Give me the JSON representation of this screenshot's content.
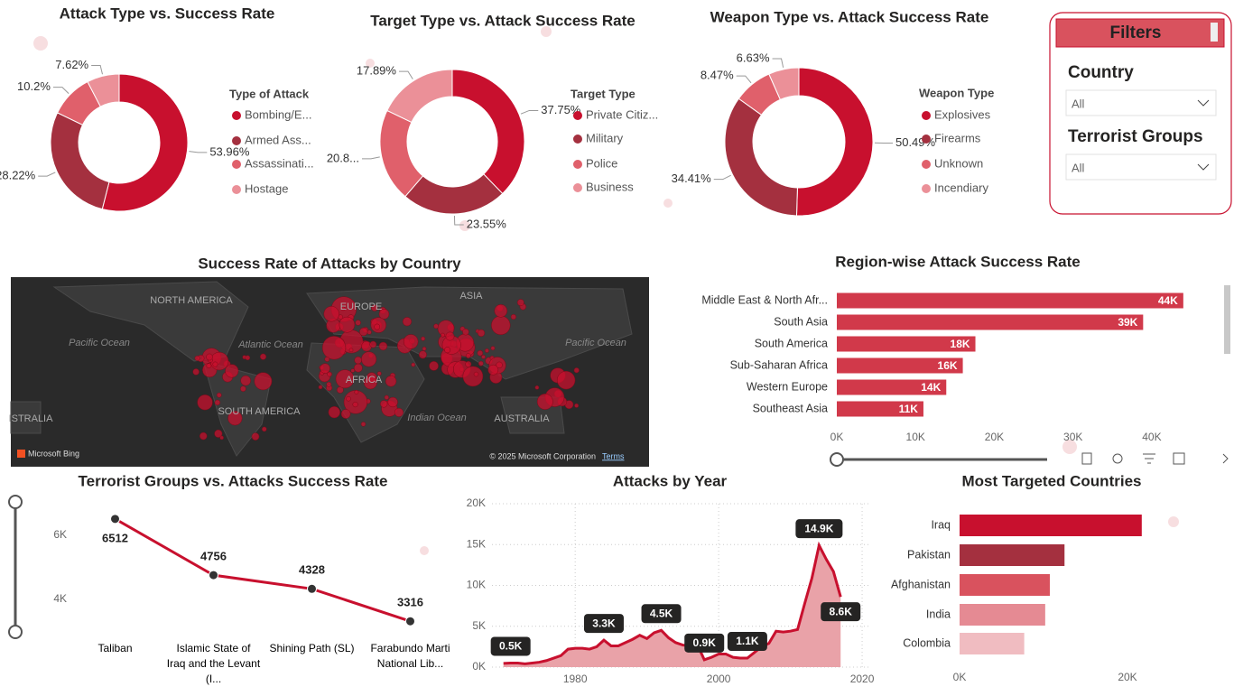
{
  "chart_data": [
    {
      "type": "donut",
      "title": "Attack Type vs. Success Rate",
      "legend_title": "Type of Attack",
      "categories": [
        "Bombing/E...",
        "Armed Ass...",
        "Assassinati...",
        "Hostage"
      ],
      "values": [
        53.96,
        28.22,
        10.2,
        7.62
      ],
      "value_labels": [
        "53.96%",
        "28.22%",
        "10.2%",
        "7.62%"
      ],
      "colors": [
        "#c8102e",
        "#a4303f",
        "#e0606b",
        "#eb9098"
      ]
    },
    {
      "type": "donut",
      "title": "Target Type vs. Attack Success Rate",
      "legend_title": "Target Type",
      "categories": [
        "Private Citiz...",
        "Military",
        "Police",
        "Business"
      ],
      "values": [
        37.75,
        23.55,
        20.81,
        17.89
      ],
      "value_labels": [
        "37.75%",
        "23.55%",
        "20.8...",
        "17.89%"
      ],
      "colors": [
        "#c8102e",
        "#a4303f",
        "#e0606b",
        "#eb9098"
      ]
    },
    {
      "type": "donut",
      "title": "Weapon Type vs. Attack Success Rate",
      "legend_title": "Weapon Type",
      "categories": [
        "Explosives",
        "Firearms",
        "Unknown",
        "Incendiary"
      ],
      "values": [
        50.49,
        34.41,
        8.47,
        6.63
      ],
      "value_labels": [
        "50.49%",
        "34.41%",
        "8.47%",
        "6.63%"
      ],
      "colors": [
        "#c8102e",
        "#a4303f",
        "#e0606b",
        "#eb9098"
      ]
    },
    {
      "type": "map",
      "title": "Success Rate of Attacks by Country",
      "labels": [
        "NORTH AMERICA",
        "EUROPE",
        "ASIA",
        "AFRICA",
        "SOUTH AMERICA",
        "AUSTRALIA",
        "ISTRALIA",
        "Pacific Ocean",
        "Atlantic Ocean",
        "Pacific Ocean",
        "Indian Ocean"
      ],
      "attribution": [
        "Microsoft Bing",
        "© 2025 Microsoft Corporation",
        "Terms"
      ],
      "color": "#c8102e"
    },
    {
      "type": "hbar",
      "title": "Region-wise Attack Success Rate",
      "categories": [
        "Middle East & North Afr...",
        "South Asia",
        "South America",
        "Sub-Saharan Africa",
        "Western Europe",
        "Southeast Asia"
      ],
      "values": [
        44000,
        38900,
        17600,
        16000,
        13900,
        11000
      ],
      "value_labels": [
        "44K",
        "39K",
        "18K",
        "16K",
        "14K",
        "11K"
      ],
      "color": "#d1394a",
      "xlim": [
        0,
        47000
      ],
      "xticks": [
        {
          "value": 0,
          "label": "0K"
        },
        {
          "value": 10000,
          "label": "10K"
        },
        {
          "value": 20000,
          "label": "20K"
        },
        {
          "value": 30000,
          "label": "30K"
        },
        {
          "value": 40000,
          "label": "40K"
        }
      ]
    },
    {
      "type": "line",
      "title": "Terrorist Groups vs. Attacks Success Rate",
      "categories": [
        "Taliban",
        "Islamic State of Iraq and the Levant (I...",
        "Shining Path (SL)",
        "Farabundo Marti National Lib..."
      ],
      "values": [
        6512,
        4756,
        4328,
        3316
      ],
      "color": "#c8102e",
      "ylim": [
        1800,
        7000
      ],
      "yticks": [
        {
          "value": 4000,
          "label": "4K"
        },
        {
          "value": 6000,
          "label": "6K"
        }
      ]
    },
    {
      "type": "area",
      "title": "Attacks by Year",
      "x": [
        1970,
        1971,
        1972,
        1973,
        1974,
        1975,
        1976,
        1977,
        1978,
        1979,
        1980,
        1981,
        1982,
        1983,
        1984,
        1985,
        1986,
        1987,
        1988,
        1989,
        1990,
        1991,
        1992,
        1993,
        1994,
        1995,
        1996,
        1997,
        1998,
        1999,
        2000,
        2001,
        2002,
        2003,
        2004,
        2005,
        2006,
        2007,
        2008,
        2009,
        2010,
        2011,
        2012,
        2013,
        2014,
        2015,
        2016,
        2017
      ],
      "values": [
        450,
        500,
        500,
        400,
        500,
        600,
        800,
        1100,
        1400,
        2200,
        2300,
        2300,
        2200,
        2500,
        3300,
        2600,
        2600,
        3000,
        3400,
        3900,
        3500,
        4200,
        4500,
        3600,
        3000,
        2700,
        2600,
        2800,
        900,
        1200,
        1600,
        1600,
        1200,
        1100,
        1100,
        1800,
        2500,
        2900,
        4400,
        4300,
        4400,
        4600,
        7800,
        10900,
        14900,
        13200,
        11700,
        8600
      ],
      "value_labels": [
        null,
        "0.5K",
        null,
        null,
        null,
        null,
        null,
        null,
        null,
        null,
        null,
        null,
        null,
        null,
        "3.3K",
        null,
        null,
        null,
        null,
        null,
        null,
        null,
        "4.5K",
        null,
        null,
        null,
        null,
        null,
        "0.9K",
        null,
        null,
        null,
        null,
        null,
        "1.1K",
        null,
        null,
        null,
        null,
        null,
        null,
        null,
        null,
        null,
        "14.9K",
        null,
        null,
        "8.6K"
      ],
      "color": "#c8102e",
      "fill": "#e9a2a8",
      "grid": true,
      "xlim": [
        1968.4,
        2021
      ],
      "xticks": [
        1980,
        2000,
        2020
      ],
      "ylim": [
        0,
        20000
      ],
      "yticks": [
        {
          "value": 0,
          "label": "0K"
        },
        {
          "value": 5000,
          "label": "5K"
        },
        {
          "value": 10000,
          "label": "10K"
        },
        {
          "value": 15000,
          "label": "15K"
        },
        {
          "value": 20000,
          "label": "20K"
        }
      ]
    },
    {
      "type": "hbar",
      "title": "Most Targeted Countries",
      "categories": [
        "Iraq",
        "Pakistan",
        "Afghanistan",
        "India",
        "Colombia"
      ],
      "values": [
        21700,
        12500,
        10750,
        10200,
        7700
      ],
      "colors": [
        "#c8102e",
        "#a4303f",
        "#d9525e",
        "#e58a93",
        "#f0bcc1"
      ],
      "xlim": [
        0,
        22000
      ],
      "xticks": [
        {
          "value": 0,
          "label": "0K"
        },
        {
          "value": 20000,
          "label": "20K"
        }
      ]
    }
  ],
  "filters": {
    "title": "Filters",
    "fields": [
      {
        "label": "Country",
        "value": "All"
      },
      {
        "label": "Terrorist Groups",
        "value": "All"
      }
    ]
  }
}
